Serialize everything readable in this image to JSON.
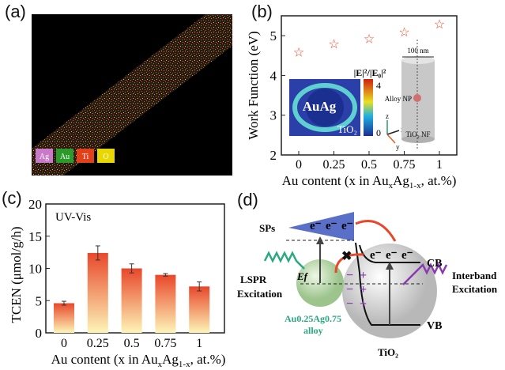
{
  "panels": {
    "a": {
      "label": "(a)",
      "legend": [
        "Ag",
        "Au",
        "Ti",
        "O"
      ],
      "legend_colors": [
        "#c879c8",
        "#2a9a2a",
        "#e0401a",
        "#e8d800"
      ]
    },
    "b": {
      "label": "(b)",
      "inset_colorbar_title": "|E|²/|E₀|²",
      "inset_colorbar_ticks": [
        "4",
        "0"
      ],
      "inset_text_particle": "AuAg",
      "inset_text_support": "TiO₂",
      "scheme_dimension": "100 nm",
      "scheme_np": "Alloy NP",
      "scheme_nf": "TiO₂ NF",
      "axes": [
        "z",
        "x",
        "y"
      ]
    },
    "c": {
      "label": "(c)",
      "annotation": "UV-Vis"
    },
    "d": {
      "label": "(d)",
      "sps": "SPs",
      "electron": "e⁻",
      "ef": "Ef",
      "cb": "CB",
      "vb": "VB",
      "lspr": [
        "LSPR",
        "Excitation"
      ],
      "interband": [
        "Interband",
        "Excitation"
      ],
      "alloy": [
        "Au0.25Ag0.75",
        "alloy"
      ],
      "tio2": "TiO₂",
      "minus": "−",
      "plus": "+"
    }
  },
  "chart_data": [
    {
      "type": "scatter",
      "panel": "b",
      "categories": [
        "0",
        "0.25",
        "0.5",
        "0.75",
        "1"
      ],
      "values": [
        4.6,
        4.8,
        4.93,
        5.1,
        5.3
      ],
      "xlabel": "Au content (x in AuxAg1-x, at.%)",
      "ylabel": "Work Function (eV)",
      "ylim": [
        2,
        5.5
      ],
      "yticks": [
        "2",
        "3",
        "4",
        "5"
      ],
      "marker": "star",
      "color": "#e8472a"
    },
    {
      "type": "bar",
      "panel": "c",
      "categories": [
        "0",
        "0.25",
        "0.5",
        "0.75",
        "1"
      ],
      "values": [
        4.6,
        12.4,
        10.0,
        9.0,
        7.2
      ],
      "errors": [
        0.3,
        1.1,
        0.7,
        0.2,
        0.7
      ],
      "xlabel": "Au content (x in AuxAg1-x, at.%)",
      "ylabel": "TCEN (μmol/g/h)",
      "ylim": [
        0,
        20
      ],
      "yticks": [
        "0",
        "5",
        "10",
        "15",
        "20"
      ],
      "color_top": "#e8472a",
      "color_bottom": "#fdf5b8"
    }
  ]
}
